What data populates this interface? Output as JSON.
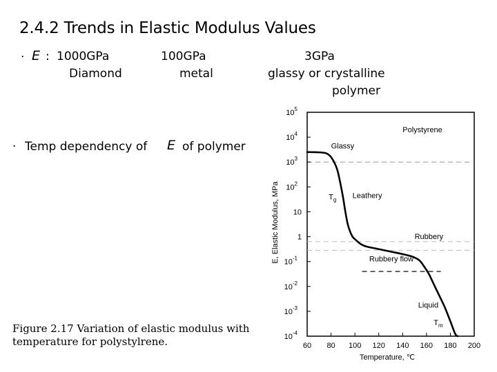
{
  "slide": {
    "title": "2.4.2 Trends in Elastic Modulus Values",
    "bullet1": {
      "marker": "·",
      "symbol": "E",
      "colon": ":",
      "items": [
        {
          "value": "1000GPa",
          "label": "Diamond"
        },
        {
          "value": "100GPa",
          "label": "metal"
        },
        {
          "value": "3GPa",
          "label_line1": "glassy or crystalline",
          "label_line2": "polymer"
        }
      ]
    },
    "bullet2": {
      "marker": "·",
      "text_before": "Temp dependency of",
      "symbol": "E",
      "text_after": "of polymer"
    },
    "caption_line1": "Figure 2.17 Variation of elastic modulus with",
    "caption_line2": "temperature for polystylrene."
  },
  "chart_data": {
    "type": "line",
    "ylabel": "E, Elastic Modulus, MPa",
    "xlabel": "Temperature, ℃",
    "xlim": [
      60,
      200
    ],
    "xticks": [
      60,
      80,
      100,
      120,
      140,
      160,
      180,
      200
    ],
    "ylim_log10": [
      -4,
      5
    ],
    "yscale": "log",
    "yticks": [
      {
        "base": "10",
        "exp": "5",
        "log": 5
      },
      {
        "base": "10",
        "exp": "4",
        "log": 4
      },
      {
        "base": "10",
        "exp": "3",
        "log": 3
      },
      {
        "base": "10",
        "exp": "2",
        "log": 2
      },
      {
        "base": "10",
        "exp": "",
        "log": 1
      },
      {
        "base": "1",
        "exp": "",
        "log": 0
      },
      {
        "base": "10",
        "exp": "-1",
        "log": -1
      },
      {
        "base": "10",
        "exp": "-2",
        "log": -2
      },
      {
        "base": "10",
        "exp": "-3",
        "log": -3
      },
      {
        "base": "10",
        "exp": "-4",
        "log": -4
      }
    ],
    "series": [
      {
        "x": [
          60,
          70,
          76,
          80,
          84,
          86,
          88,
          90,
          92,
          94,
          96,
          98,
          100,
          105,
          110,
          120,
          130,
          140,
          148,
          154,
          158,
          162,
          166,
          170,
          175,
          180,
          184,
          186
        ],
        "log10_E": [
          3.4,
          3.39,
          3.35,
          3.2,
          2.85,
          2.55,
          2.1,
          1.6,
          1.0,
          0.5,
          0.2,
          0.0,
          -0.1,
          -0.3,
          -0.4,
          -0.5,
          -0.6,
          -0.7,
          -0.8,
          -0.95,
          -1.2,
          -1.5,
          -1.9,
          -2.3,
          -2.8,
          -3.4,
          -3.9,
          -4.0
        ]
      }
    ],
    "reference_lines": [
      {
        "log10_E": 3.0,
        "style": "dashed",
        "color": "#999999"
      },
      {
        "log10_E": -0.2,
        "style": "dashed",
        "color": "#bbbbbb"
      },
      {
        "log10_E": -0.55,
        "style": "dashed",
        "color": "#bbbbbb"
      },
      {
        "log10_E": -1.4,
        "style": "dashed",
        "color": "#222222",
        "x_start": 106,
        "x_end": 172
      }
    ],
    "annotations": [
      {
        "text": "Polystyrene",
        "x": 140,
        "log10_E": 4.2
      },
      {
        "text": "Glassy",
        "x": 80,
        "log10_E": 3.55
      },
      {
        "text": "Leathery",
        "x": 98,
        "log10_E": 1.55
      },
      {
        "text": "T",
        "sub": "g",
        "x": 78,
        "log10_E": 1.5
      },
      {
        "text": "Rubbery",
        "x": 150,
        "log10_E": -0.1
      },
      {
        "text": "Rubbery  flow",
        "x": 112,
        "log10_E": -1.0
      },
      {
        "text": "Liquid",
        "x": 153,
        "log10_E": -2.85
      },
      {
        "text": "T",
        "sub": "m",
        "x": 166,
        "log10_E": -3.55
      }
    ]
  }
}
